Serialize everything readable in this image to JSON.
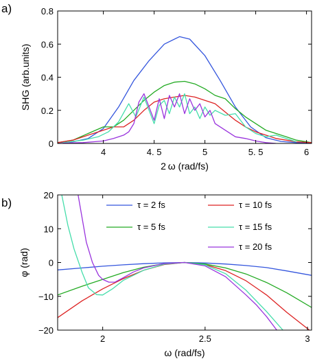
{
  "chart_data": [
    {
      "panel": "a)",
      "type": "line",
      "xlabel": "2 ω  (rad/fs)",
      "ylabel": "SHG (arb.units)",
      "xlim": [
        3.55,
        6.05
      ],
      "ylim": [
        0,
        0.8
      ],
      "xticks": [
        4,
        4.5,
        5,
        5.5,
        6
      ],
      "xtick_labels": [
        "4",
        "4. 5",
        "5",
        "5. 5",
        "6"
      ],
      "yticks": [
        0,
        0.2,
        0.4,
        0.6,
        0.8
      ],
      "ytick_labels": [
        "0",
        "0.2",
        "0.4",
        "0.6",
        "0.8"
      ],
      "grid": false,
      "series": [
        {
          "color": "#3355dd",
          "x": [
            3.55,
            3.7,
            3.85,
            4.0,
            4.15,
            4.3,
            4.45,
            4.6,
            4.75,
            4.85,
            5.0,
            5.15,
            5.3,
            5.45,
            5.6,
            5.75,
            5.9,
            6.05
          ],
          "y": [
            0.005,
            0.01,
            0.03,
            0.09,
            0.22,
            0.38,
            0.5,
            0.6,
            0.645,
            0.63,
            0.53,
            0.38,
            0.22,
            0.1,
            0.035,
            0.012,
            0.005,
            0.002
          ]
        },
        {
          "color": "#22aa22",
          "x": [
            3.55,
            3.7,
            3.85,
            4.0,
            4.1,
            4.2,
            4.3,
            4.4,
            4.5,
            4.6,
            4.7,
            4.8,
            4.9,
            5.0,
            5.1,
            5.2,
            5.3,
            5.4,
            5.5,
            5.6,
            5.7,
            5.8,
            5.9,
            6.05
          ],
          "y": [
            0.005,
            0.02,
            0.06,
            0.1,
            0.1,
            0.14,
            0.2,
            0.26,
            0.31,
            0.35,
            0.37,
            0.375,
            0.36,
            0.33,
            0.29,
            0.27,
            0.21,
            0.16,
            0.12,
            0.08,
            0.06,
            0.04,
            0.02,
            0.005
          ]
        },
        {
          "color": "#dd2222",
          "x": [
            3.55,
            3.7,
            3.85,
            4.0,
            4.1,
            4.2,
            4.3,
            4.4,
            4.5,
            4.6,
            4.7,
            4.8,
            4.9,
            5.0,
            5.1,
            5.2,
            5.3,
            5.4,
            5.5,
            5.6,
            5.7,
            5.8,
            5.9,
            6.05
          ],
          "y": [
            0.005,
            0.02,
            0.05,
            0.08,
            0.1,
            0.1,
            0.14,
            0.2,
            0.25,
            0.27,
            0.28,
            0.29,
            0.28,
            0.26,
            0.24,
            0.19,
            0.14,
            0.1,
            0.07,
            0.05,
            0.03,
            0.02,
            0.01,
            0.005
          ]
        },
        {
          "color": "#44ddaa",
          "x": [
            3.6,
            3.8,
            3.95,
            4.05,
            4.15,
            4.25,
            4.32,
            4.4,
            4.45,
            4.5,
            4.55,
            4.6,
            4.65,
            4.7,
            4.75,
            4.8,
            4.85,
            4.9,
            4.95,
            5.0,
            5.05,
            5.1,
            5.2,
            5.3,
            5.4,
            5.5,
            5.6,
            5.7,
            5.8,
            5.9
          ],
          "y": [
            0.005,
            0.02,
            0.04,
            0.07,
            0.13,
            0.24,
            0.16,
            0.28,
            0.2,
            0.12,
            0.23,
            0.26,
            0.18,
            0.28,
            0.22,
            0.3,
            0.18,
            0.22,
            0.15,
            0.22,
            0.17,
            0.2,
            0.17,
            0.18,
            0.1,
            0.06,
            0.04,
            0.05,
            0.03,
            0.01
          ]
        },
        {
          "color": "#9933dd",
          "x": [
            3.6,
            3.8,
            3.9,
            4.0,
            4.1,
            4.2,
            4.25,
            4.3,
            4.35,
            4.4,
            4.45,
            4.5,
            4.55,
            4.6,
            4.65,
            4.7,
            4.75,
            4.8,
            4.85,
            4.9,
            4.95,
            5.0,
            5.05,
            5.1,
            5.2,
            5.3,
            5.4,
            5.5,
            5.6,
            5.7
          ],
          "y": [
            0.002,
            0.005,
            0.01,
            0.015,
            0.03,
            0.05,
            0.07,
            0.12,
            0.25,
            0.3,
            0.22,
            0.14,
            0.27,
            0.15,
            0.29,
            0.22,
            0.3,
            0.18,
            0.27,
            0.2,
            0.24,
            0.16,
            0.2,
            0.12,
            0.08,
            0.04,
            0.03,
            0.015,
            0.005,
            0.0
          ]
        }
      ]
    },
    {
      "panel": "b)",
      "type": "line",
      "xlabel": "ω  (rad/fs)",
      "ylabel": "φ  (rad)",
      "xlim": [
        1.78,
        3.02
      ],
      "ylim": [
        -20,
        20
      ],
      "xticks": [
        2,
        2.5,
        3
      ],
      "xtick_labels": [
        "2",
        "2.5",
        "3"
      ],
      "yticks": [
        -20,
        -10,
        0,
        10,
        20
      ],
      "ytick_labels": [
        "−20",
        "−10",
        "0",
        "10",
        "20"
      ],
      "grid": false,
      "legend_placement": "top",
      "series": [
        {
          "name": "τ = 2 fs",
          "color": "#3355dd",
          "x": [
            1.78,
            1.9,
            2.0,
            2.1,
            2.2,
            2.3,
            2.4,
            2.5,
            2.6,
            2.7,
            2.8,
            2.9,
            3.02
          ],
          "y": [
            -2.2,
            -1.6,
            -1.1,
            -0.7,
            -0.35,
            -0.1,
            0,
            -0.15,
            -0.45,
            -0.9,
            -1.5,
            -2.5,
            -3.8
          ]
        },
        {
          "name": "τ = 10 fs",
          "color": "#dd2222",
          "x": [
            1.78,
            1.9,
            2.0,
            2.1,
            2.2,
            2.3,
            2.4,
            2.5,
            2.6,
            2.7,
            2.8,
            2.9,
            3.02
          ],
          "y": [
            -16.3,
            -11.3,
            -7.8,
            -4.8,
            -2.3,
            -0.6,
            0,
            -0.6,
            -2.4,
            -5.4,
            -9.6,
            -14.8,
            -20.5
          ]
        },
        {
          "name": "τ = 5 fs",
          "color": "#22aa22",
          "x": [
            1.78,
            1.9,
            2.0,
            2.1,
            2.2,
            2.3,
            2.4,
            2.5,
            2.6,
            2.7,
            2.8,
            2.9,
            3.02
          ],
          "y": [
            -9.6,
            -7.0,
            -5.0,
            -3.0,
            -1.4,
            -0.35,
            0,
            -0.45,
            -1.6,
            -3.4,
            -5.9,
            -9.0,
            -13.3
          ]
        },
        {
          "name": "τ = 15 fs",
          "color": "#44ddaa",
          "x": [
            1.8,
            1.83,
            1.86,
            1.9,
            1.93,
            1.97,
            2.0,
            2.05,
            2.1,
            2.2,
            2.3,
            2.4,
            2.5,
            2.6,
            2.7,
            2.8,
            2.88
          ],
          "y": [
            20,
            11,
            4,
            -3,
            -7.5,
            -9.5,
            -9.6,
            -7.7,
            -5.3,
            -2.3,
            -0.5,
            0,
            -0.7,
            -3.3,
            -8.2,
            -14.5,
            -20
          ]
        },
        {
          "name": "τ = 20 fs",
          "color": "#9933dd",
          "x": [
            1.88,
            1.9,
            1.92,
            1.95,
            1.98,
            2.0,
            2.03,
            2.06,
            2.1,
            2.15,
            2.2,
            2.3,
            2.4,
            2.5,
            2.6,
            2.7,
            2.75,
            2.8,
            2.85
          ],
          "y": [
            20,
            13,
            6,
            0,
            -3.8,
            -5,
            -5.8,
            -5.8,
            -4.5,
            -2.8,
            -1.6,
            -0.3,
            0,
            -1,
            -4.2,
            -9.6,
            -12.5,
            -16,
            -20
          ]
        }
      ]
    }
  ]
}
